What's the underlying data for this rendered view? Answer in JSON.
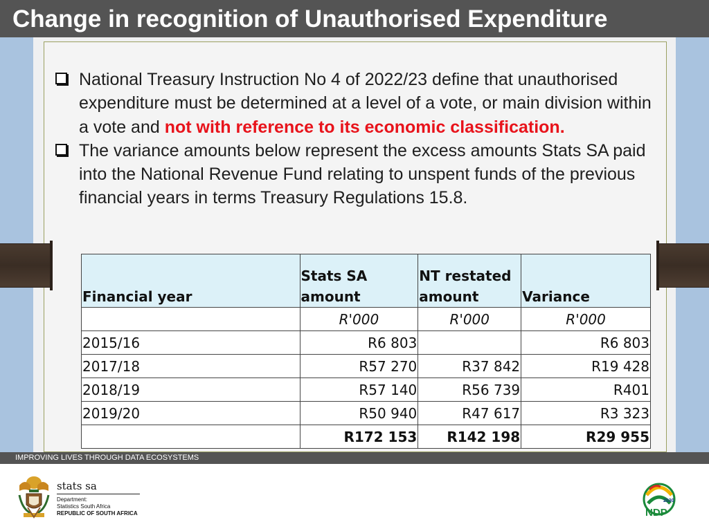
{
  "slide": {
    "title": "Change in recognition of Unauthorised Expenditure"
  },
  "bullets": [
    {
      "text": "National Treasury Instruction No 4 of 2022/23 define that unauthorised expenditure must be determined at a level of a vote, or main division within a vote and ",
      "highlight": "not with reference to its economic classification."
    },
    {
      "text": "The variance amounts below represent the excess amounts Stats SA paid into the National Revenue Fund relating to unspent funds of the previous financial years in terms Treasury Regulations 15.8."
    }
  ],
  "table": {
    "headers": [
      "Financial year",
      "Stats SA amount",
      "NT restated amount",
      "Variance"
    ],
    "units": [
      "",
      "R'000",
      "R'000",
      "R'000"
    ],
    "rows": [
      [
        "2015/16",
        "R6 803",
        "",
        "R6 803"
      ],
      [
        "2017/18",
        "R57 270",
        "R37 842",
        "R19 428"
      ],
      [
        "2018/19",
        "R57 140",
        "R56 739",
        "R401"
      ],
      [
        "2019/20",
        "R50 940",
        "R47 617",
        "R3 323"
      ]
    ],
    "totals": [
      "",
      "R172 153",
      "R142 198",
      "R29 955"
    ]
  },
  "footer": {
    "tagline": "IMPROVING LIVES THROUGH DATA ECOSYSTEMS",
    "org_name": "stats sa",
    "dept_line1": "Department:",
    "dept_line2": "Statistics South Africa",
    "dept_line3": "REPUBLIC OF SOUTH AFRICA",
    "ndp_year": "2030",
    "ndp_label": "NDP"
  },
  "colors": {
    "title_bar": "#545454",
    "highlight_red": "#e8131b",
    "header_fill": "#dcf1f8",
    "side_blue": "#a9c3df"
  }
}
